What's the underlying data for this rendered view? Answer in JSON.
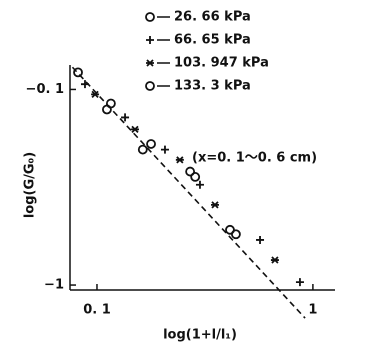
{
  "chart_data": {
    "type": "scatter",
    "xlabel": "log(1+l/l₁)",
    "ylabel": "log(G/G₀)",
    "annotation": "(x=0. 1～0. 6 cm)",
    "xscale": "log",
    "yscale": "log",
    "xlim": [
      0.075,
      1.2
    ],
    "ylim": [
      -0.075,
      -1.06
    ],
    "xticks": [
      {
        "value": 0.1,
        "label": "0. 1"
      },
      1
    ],
    "yticks": [
      {
        "value": -0.1,
        "label": "−0. 1"
      },
      {
        "value": -1,
        "label": "−1"
      }
    ],
    "series": [
      {
        "name": "26. 66 kPa",
        "marker": "circle",
        "color": "#111111",
        "x": [
          0.0817,
          0.1112,
          0.163,
          0.27,
          0.413
        ],
        "values": [
          -0.0818,
          -0.1266,
          -0.203,
          -0.263,
          -0.522
        ]
      },
      {
        "name": "66. 65 kPa",
        "marker": "plus",
        "color": "#111111",
        "x": [
          0.088,
          0.1349,
          0.2065,
          0.2999,
          0.569,
          0.871
        ],
        "values": [
          -0.094,
          -0.139,
          -0.203,
          -0.307,
          -0.588,
          -0.966
        ]
      },
      {
        "name": "103. 947 kPa",
        "marker": "star",
        "color": "#111111",
        "x": [
          0.098,
          0.15,
          0.242,
          0.352,
          0.667
        ],
        "values": [
          -0.106,
          -0.16,
          -0.229,
          -0.389,
          -0.745
        ]
      },
      {
        "name": "133. 3 kPa",
        "marker": "circle",
        "color": "#111111",
        "x": [
          0.116,
          0.178,
          0.285,
          0.44
        ],
        "values": [
          -0.118,
          -0.19,
          -0.28,
          -0.55
        ]
      }
    ],
    "fit_line": {
      "color": "#111111",
      "x": [
        0.077,
        0.92
      ],
      "values": [
        -0.077,
        -1.476
      ]
    }
  }
}
